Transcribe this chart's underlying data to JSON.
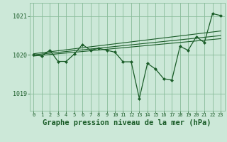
{
  "bg_color": "#cce8d8",
  "grid_color": "#88bb99",
  "line_color": "#1a5c28",
  "marker_color": "#1a5c28",
  "xlabel": "Graphe pression niveau de la mer (hPa)",
  "xlabel_fontsize": 7.5,
  "ylim": [
    1018.55,
    1021.35
  ],
  "xlim": [
    -0.5,
    23.5
  ],
  "yticks": [
    1019,
    1020,
    1021
  ],
  "xticks": [
    0,
    1,
    2,
    3,
    4,
    5,
    6,
    7,
    8,
    9,
    10,
    11,
    12,
    13,
    14,
    15,
    16,
    17,
    18,
    19,
    20,
    21,
    22,
    23
  ],
  "series_main": {
    "x": [
      0,
      1,
      2,
      3,
      4,
      5,
      6,
      7,
      8,
      9,
      10,
      11,
      12,
      13,
      14,
      15,
      16,
      17,
      18,
      19,
      20,
      21,
      22,
      23
    ],
    "y": [
      1020.0,
      1019.97,
      1020.12,
      1019.83,
      1019.83,
      1020.02,
      1020.27,
      1020.12,
      1020.17,
      1020.12,
      1020.07,
      1019.82,
      1019.82,
      1018.87,
      1019.78,
      1019.63,
      1019.38,
      1019.35,
      1020.22,
      1020.12,
      1020.47,
      1020.32,
      1021.07,
      1021.02
    ],
    "marker": "D",
    "markersize": 2.0,
    "linewidth": 0.9
  },
  "trend_lines": [
    {
      "x0": 0,
      "y0": 1020.0,
      "x1": 23,
      "y1": 1020.5,
      "lw": 0.8
    },
    {
      "x0": 0,
      "y0": 1020.03,
      "x1": 23,
      "y1": 1020.62,
      "lw": 0.8
    },
    {
      "x0": 0,
      "y0": 1019.97,
      "x1": 23,
      "y1": 1020.42,
      "lw": 0.8
    }
  ]
}
